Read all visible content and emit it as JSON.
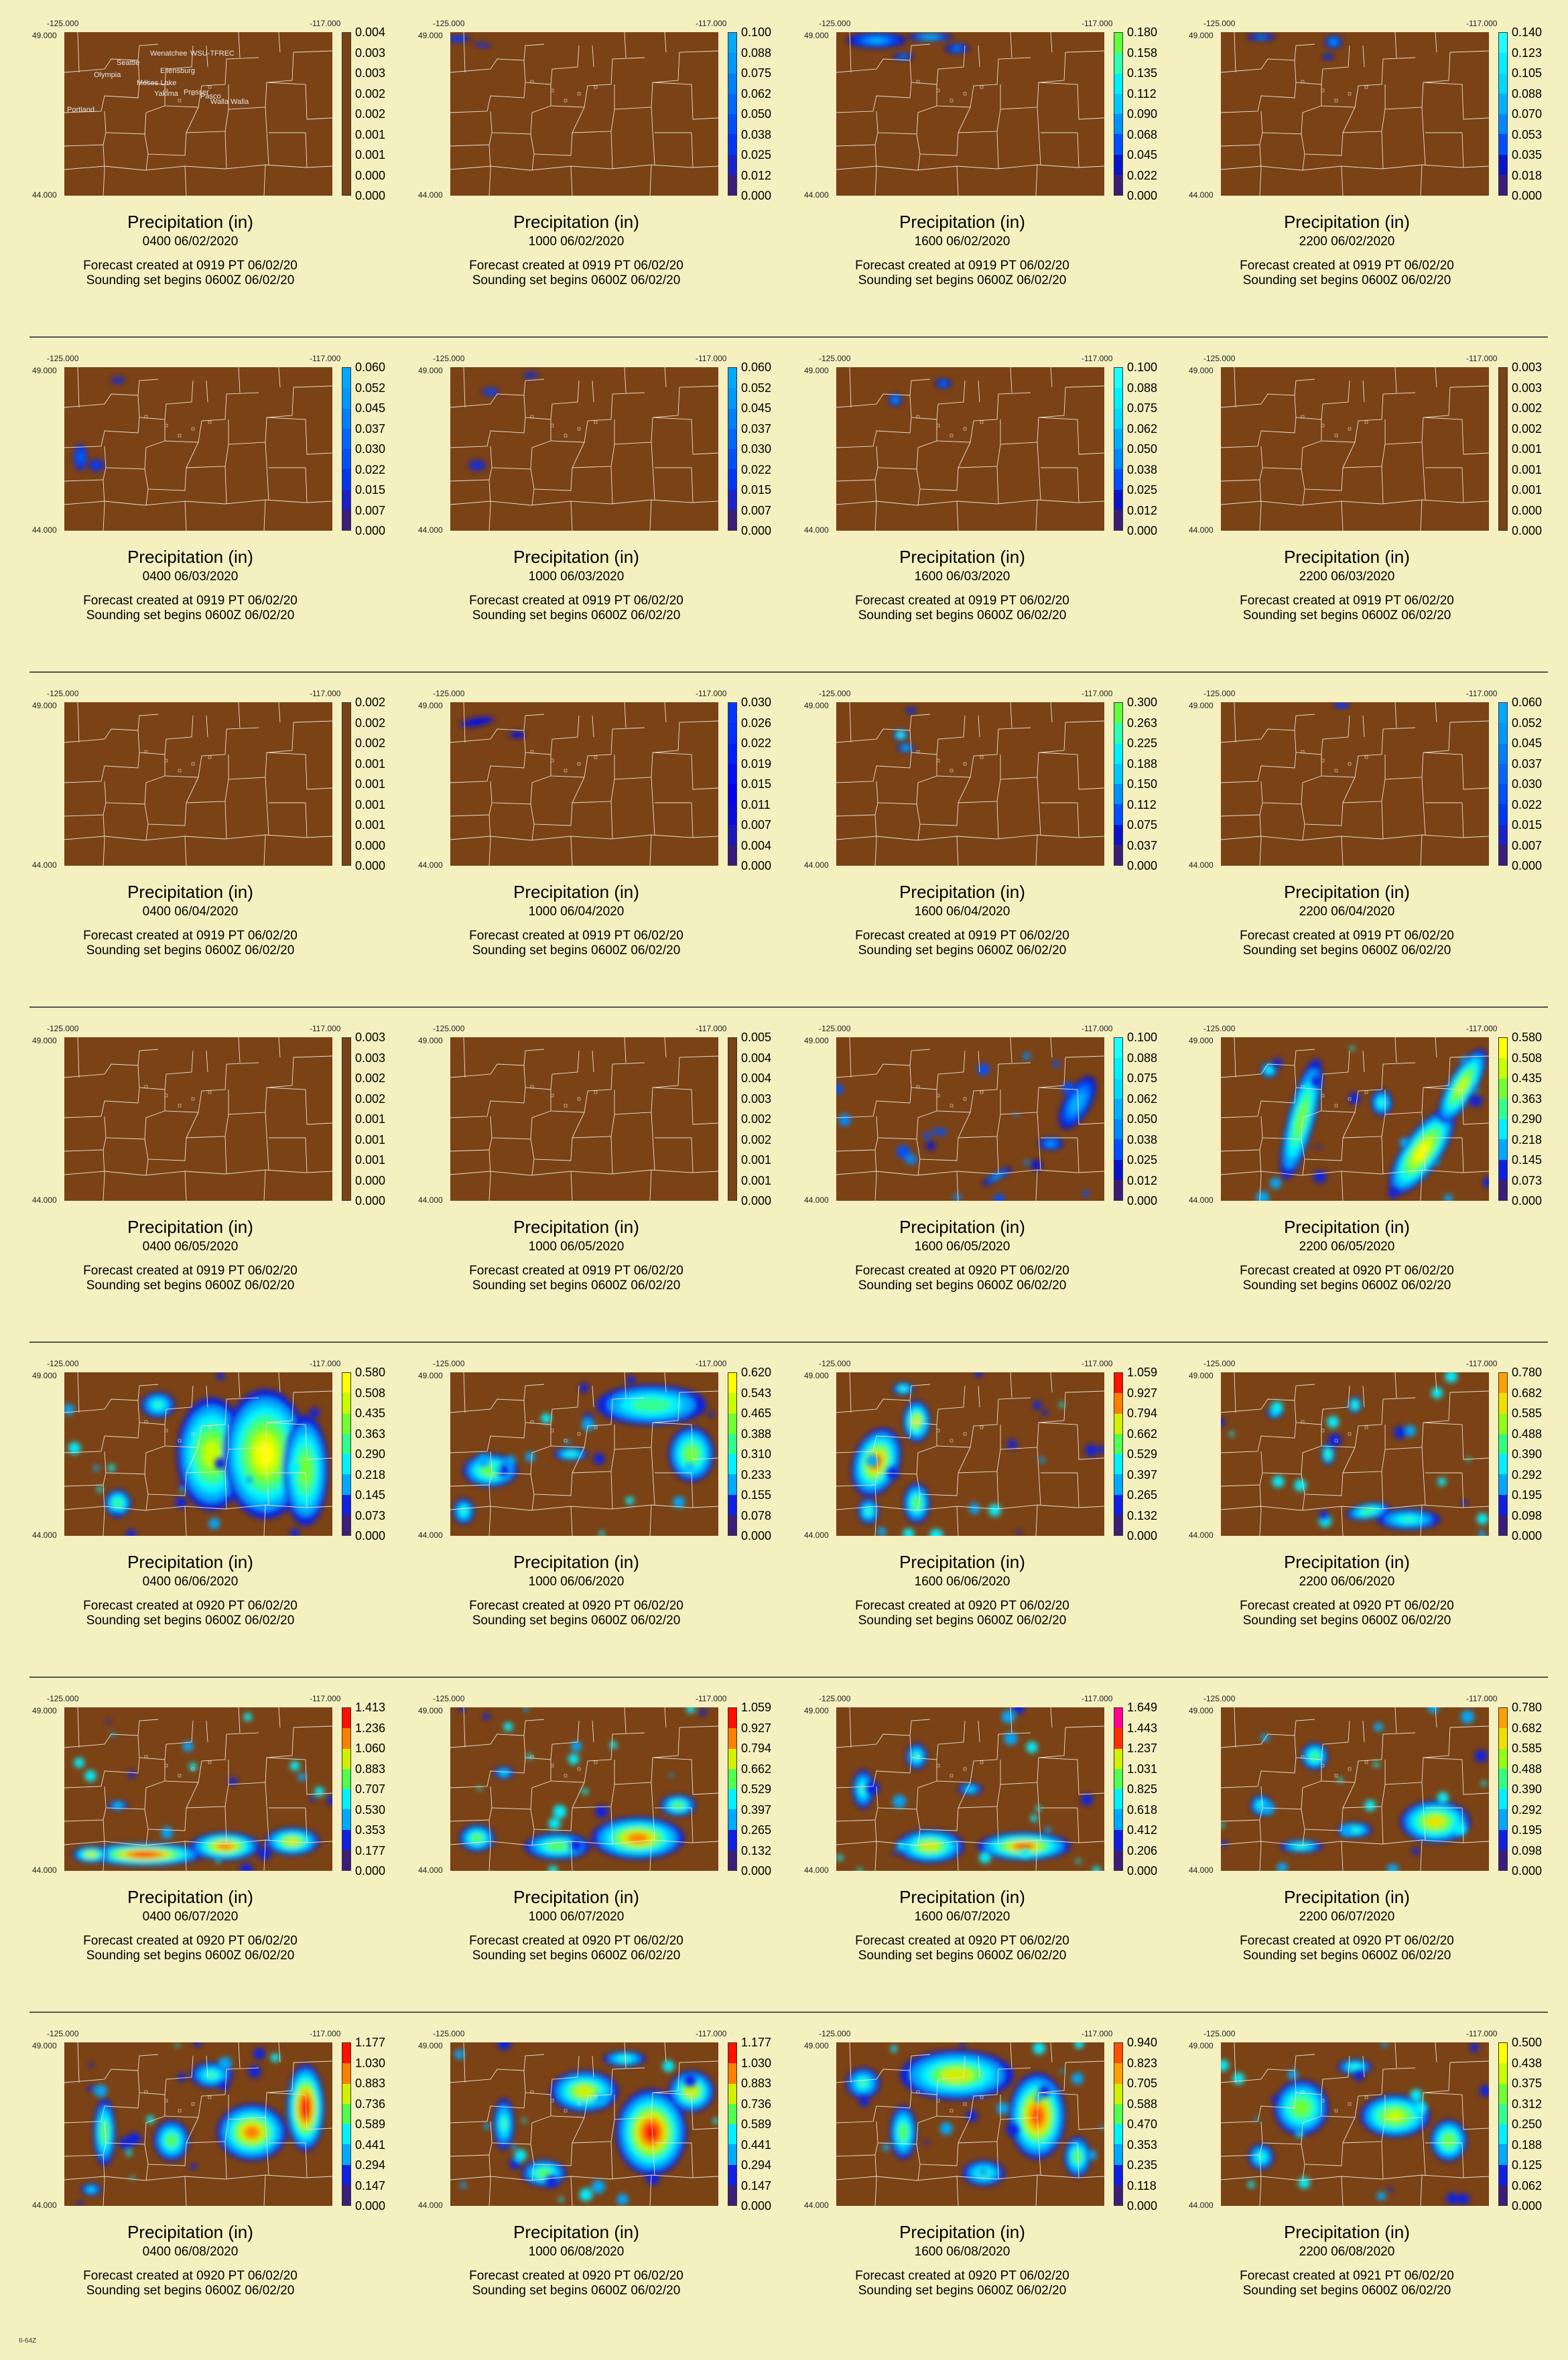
{
  "coords": {
    "west": "-125.000",
    "east": "-117.000",
    "north": "49.000",
    "south": "44.000"
  },
  "title": "Precipitation (in)",
  "cities": [
    "Seattle",
    "Olympia",
    "Wenatchee",
    "WSU-TFREC",
    "Moses Lake",
    "Ellensburg",
    "Yakima",
    "Prosser",
    "Pasco",
    "Walla Walla",
    "Portland"
  ],
  "footer": "II-64Z",
  "colors": {
    "background": "#f4f0c0",
    "land": "#7a4215",
    "boundaries": "#e8e0d0"
  },
  "panels": [
    {
      "time": "0400   06/02/2020",
      "created": "Forecast created at 0919 PT 06/02/20",
      "sounding": "Sounding set begins 0600Z 06/02/20",
      "ticks": [
        "0.004",
        "0.003",
        "0.003",
        "0.002",
        "0.002",
        "0.001",
        "0.001",
        "0.000",
        "0.000"
      ],
      "palette": "brown"
    },
    {
      "time": "1000   06/02/2020",
      "created": "Forecast created at 0919 PT 06/02/20",
      "sounding": "Sounding set begins 0600Z 06/02/20",
      "ticks": [
        "0.100",
        "0.088",
        "0.075",
        "0.062",
        "0.050",
        "0.038",
        "0.025",
        "0.012",
        "0.000"
      ],
      "palette": "blue"
    },
    {
      "time": "1600   06/02/2020",
      "created": "Forecast created at 0919 PT 06/02/20",
      "sounding": "Sounding set begins 0600Z 06/02/20",
      "ticks": [
        "0.180",
        "0.158",
        "0.135",
        "0.112",
        "0.090",
        "0.068",
        "0.045",
        "0.022",
        "0.000"
      ],
      "palette": "green"
    },
    {
      "time": "2200   06/02/2020",
      "created": "Forecast created at 0919 PT 06/02/20",
      "sounding": "Sounding set begins 0600Z 06/02/20",
      "ticks": [
        "0.140",
        "0.123",
        "0.105",
        "0.088",
        "0.070",
        "0.053",
        "0.035",
        "0.018",
        "0.000"
      ],
      "palette": "cyan"
    },
    {
      "time": "0400   06/03/2020",
      "created": "Forecast created at 0919 PT 06/02/20",
      "sounding": "Sounding set begins 0600Z 06/02/20",
      "ticks": [
        "0.060",
        "0.052",
        "0.045",
        "0.037",
        "0.030",
        "0.022",
        "0.015",
        "0.007",
        "0.000"
      ],
      "palette": "blue"
    },
    {
      "time": "1000   06/03/2020",
      "created": "Forecast created at 0919 PT 06/02/20",
      "sounding": "Sounding set begins 0600Z 06/02/20",
      "ticks": [
        "0.060",
        "0.052",
        "0.045",
        "0.037",
        "0.030",
        "0.022",
        "0.015",
        "0.007",
        "0.000"
      ],
      "palette": "blue"
    },
    {
      "time": "1600   06/03/2020",
      "created": "Forecast created at 0919 PT 06/02/20",
      "sounding": "Sounding set begins 0600Z 06/02/20",
      "ticks": [
        "0.100",
        "0.088",
        "0.075",
        "0.062",
        "0.050",
        "0.038",
        "0.025",
        "0.012",
        "0.000"
      ],
      "palette": "cyan"
    },
    {
      "time": "2200   06/03/2020",
      "created": "Forecast created at 0919 PT 06/02/20",
      "sounding": "Sounding set begins 0600Z 06/02/20",
      "ticks": [
        "0.003",
        "0.003",
        "0.002",
        "0.002",
        "0.001",
        "0.001",
        "0.001",
        "0.000",
        "0.000"
      ],
      "palette": "brown"
    },
    {
      "time": "0400   06/04/2020",
      "created": "Forecast created at 0919 PT 06/02/20",
      "sounding": "Sounding set begins 0600Z 06/02/20",
      "ticks": [
        "0.002",
        "0.002",
        "0.002",
        "0.001",
        "0.001",
        "0.001",
        "0.001",
        "0.000",
        "0.000"
      ],
      "palette": "brown"
    },
    {
      "time": "1000   06/04/2020",
      "created": "Forecast created at 0919 PT 06/02/20",
      "sounding": "Sounding set begins 0600Z 06/02/20",
      "ticks": [
        "0.030",
        "0.026",
        "0.022",
        "0.019",
        "0.015",
        "0.011",
        "0.007",
        "0.004",
        "0.000"
      ],
      "palette": "darkblue"
    },
    {
      "time": "1600   06/04/2020",
      "created": "Forecast created at 0919 PT 06/02/20",
      "sounding": "Sounding set begins 0600Z 06/02/20",
      "ticks": [
        "0.300",
        "0.263",
        "0.225",
        "0.188",
        "0.150",
        "0.112",
        "0.075",
        "0.037",
        "0.000"
      ],
      "palette": "green"
    },
    {
      "time": "2200   06/04/2020",
      "created": "Forecast created at 0919 PT 06/02/20",
      "sounding": "Sounding set begins 0600Z 06/02/20",
      "ticks": [
        "0.060",
        "0.052",
        "0.045",
        "0.037",
        "0.030",
        "0.022",
        "0.015",
        "0.007",
        "0.000"
      ],
      "palette": "blue"
    },
    {
      "time": "0400   06/05/2020",
      "created": "Forecast created at 0919 PT 06/02/20",
      "sounding": "Sounding set begins 0600Z 06/02/20",
      "ticks": [
        "0.003",
        "0.003",
        "0.002",
        "0.002",
        "0.001",
        "0.001",
        "0.001",
        "0.000",
        "0.000"
      ],
      "palette": "brown"
    },
    {
      "time": "1000   06/05/2020",
      "created": "Forecast created at 0919 PT 06/02/20",
      "sounding": "Sounding set begins 0600Z 06/02/20",
      "ticks": [
        "0.005",
        "0.004",
        "0.004",
        "0.003",
        "0.002",
        "0.002",
        "0.001",
        "0.001",
        "0.000"
      ],
      "palette": "brown"
    },
    {
      "time": "1600   06/05/2020",
      "created": "Forecast created at 0920 PT 06/02/20",
      "sounding": "Sounding set begins 0600Z 06/02/20",
      "ticks": [
        "0.100",
        "0.088",
        "0.075",
        "0.062",
        "0.050",
        "0.038",
        "0.025",
        "0.012",
        "0.000"
      ],
      "palette": "cyan"
    },
    {
      "time": "2200   06/05/2020",
      "created": "Forecast created at 0920 PT 06/02/20",
      "sounding": "Sounding set begins 0600Z 06/02/20",
      "ticks": [
        "0.580",
        "0.508",
        "0.435",
        "0.363",
        "0.290",
        "0.218",
        "0.145",
        "0.073",
        "0.000"
      ],
      "palette": "yellow"
    },
    {
      "time": "0400   06/06/2020",
      "created": "Forecast created at 0920 PT 06/02/20",
      "sounding": "Sounding set begins 0600Z 06/02/20",
      "ticks": [
        "0.580",
        "0.508",
        "0.435",
        "0.363",
        "0.290",
        "0.218",
        "0.145",
        "0.073",
        "0.000"
      ],
      "palette": "yellow"
    },
    {
      "time": "1000   06/06/2020",
      "created": "Forecast created at 0920 PT 06/02/20",
      "sounding": "Sounding set begins 0600Z 06/02/20",
      "ticks": [
        "0.620",
        "0.543",
        "0.465",
        "0.388",
        "0.310",
        "0.233",
        "0.155",
        "0.078",
        "0.000"
      ],
      "palette": "yellow"
    },
    {
      "time": "1600   06/06/2020",
      "created": "Forecast created at 0920 PT 06/02/20",
      "sounding": "Sounding set begins 0600Z 06/02/20",
      "ticks": [
        "1.059",
        "0.927",
        "0.794",
        "0.662",
        "0.529",
        "0.397",
        "0.265",
        "0.132",
        "0.000"
      ],
      "palette": "red"
    },
    {
      "time": "2200   06/06/2020",
      "created": "Forecast created at 0920 PT 06/02/20",
      "sounding": "Sounding set begins 0600Z 06/02/20",
      "ticks": [
        "0.780",
        "0.682",
        "0.585",
        "0.488",
        "0.390",
        "0.292",
        "0.195",
        "0.098",
        "0.000"
      ],
      "palette": "orange"
    },
    {
      "time": "0400   06/07/2020",
      "created": "Forecast created at 0920 PT 06/02/20",
      "sounding": "Sounding set begins 0600Z 06/02/20",
      "ticks": [
        "1.413",
        "1.236",
        "1.060",
        "0.883",
        "0.707",
        "0.530",
        "0.353",
        "0.177",
        "0.000"
      ],
      "palette": "red"
    },
    {
      "time": "1000   06/07/2020",
      "created": "Forecast created at 0920 PT 06/02/20",
      "sounding": "Sounding set begins 0600Z 06/02/20",
      "ticks": [
        "1.059",
        "0.927",
        "0.794",
        "0.662",
        "0.529",
        "0.397",
        "0.265",
        "0.132",
        "0.000"
      ],
      "palette": "red"
    },
    {
      "time": "1600   06/07/2020",
      "created": "Forecast created at 0920 PT 06/02/20",
      "sounding": "Sounding set begins 0600Z 06/02/20",
      "ticks": [
        "1.649",
        "1.443",
        "1.237",
        "1.031",
        "0.825",
        "0.618",
        "0.412",
        "0.206",
        "0.000"
      ],
      "palette": "magenta"
    },
    {
      "time": "2200   06/07/2020",
      "created": "Forecast created at 0920 PT 06/02/20",
      "sounding": "Sounding set begins 0600Z 06/02/20",
      "ticks": [
        "0.780",
        "0.682",
        "0.585",
        "0.488",
        "0.390",
        "0.292",
        "0.195",
        "0.098",
        "0.000"
      ],
      "palette": "orange"
    },
    {
      "time": "0400   06/08/2020",
      "created": "Forecast created at 0920 PT 06/02/20",
      "sounding": "Sounding set begins 0600Z 06/02/20",
      "ticks": [
        "1.177",
        "1.030",
        "0.883",
        "0.736",
        "0.589",
        "0.441",
        "0.294",
        "0.147",
        "0.000"
      ],
      "palette": "red"
    },
    {
      "time": "1000   06/08/2020",
      "created": "Forecast created at 0920 PT 06/02/20",
      "sounding": "Sounding set begins 0600Z 06/02/20",
      "ticks": [
        "1.177",
        "1.030",
        "0.883",
        "0.736",
        "0.589",
        "0.441",
        "0.294",
        "0.147",
        "0.000"
      ],
      "palette": "red"
    },
    {
      "time": "1600   06/08/2020",
      "created": "Forecast created at 0920 PT 06/02/20",
      "sounding": "Sounding set begins 0600Z 06/02/20",
      "ticks": [
        "0.940",
        "0.823",
        "0.705",
        "0.588",
        "0.470",
        "0.353",
        "0.235",
        "0.118",
        "0.000"
      ],
      "palette": "orangered"
    },
    {
      "time": "2200   06/08/2020",
      "created": "Forecast created at 0921 PT 06/02/20",
      "sounding": "Sounding set begins 0600Z 06/02/20",
      "ticks": [
        "0.500",
        "0.438",
        "0.375",
        "0.312",
        "0.250",
        "0.188",
        "0.125",
        "0.062",
        "0.000"
      ],
      "palette": "yellow"
    }
  ],
  "chart_data": {
    "type": "heatmap",
    "units": "in",
    "grid": {
      "rows": 7,
      "cols": 4
    },
    "lon_range": [
      -125.0,
      -117.0
    ],
    "lat_range": [
      44.0,
      49.0
    ]
  }
}
